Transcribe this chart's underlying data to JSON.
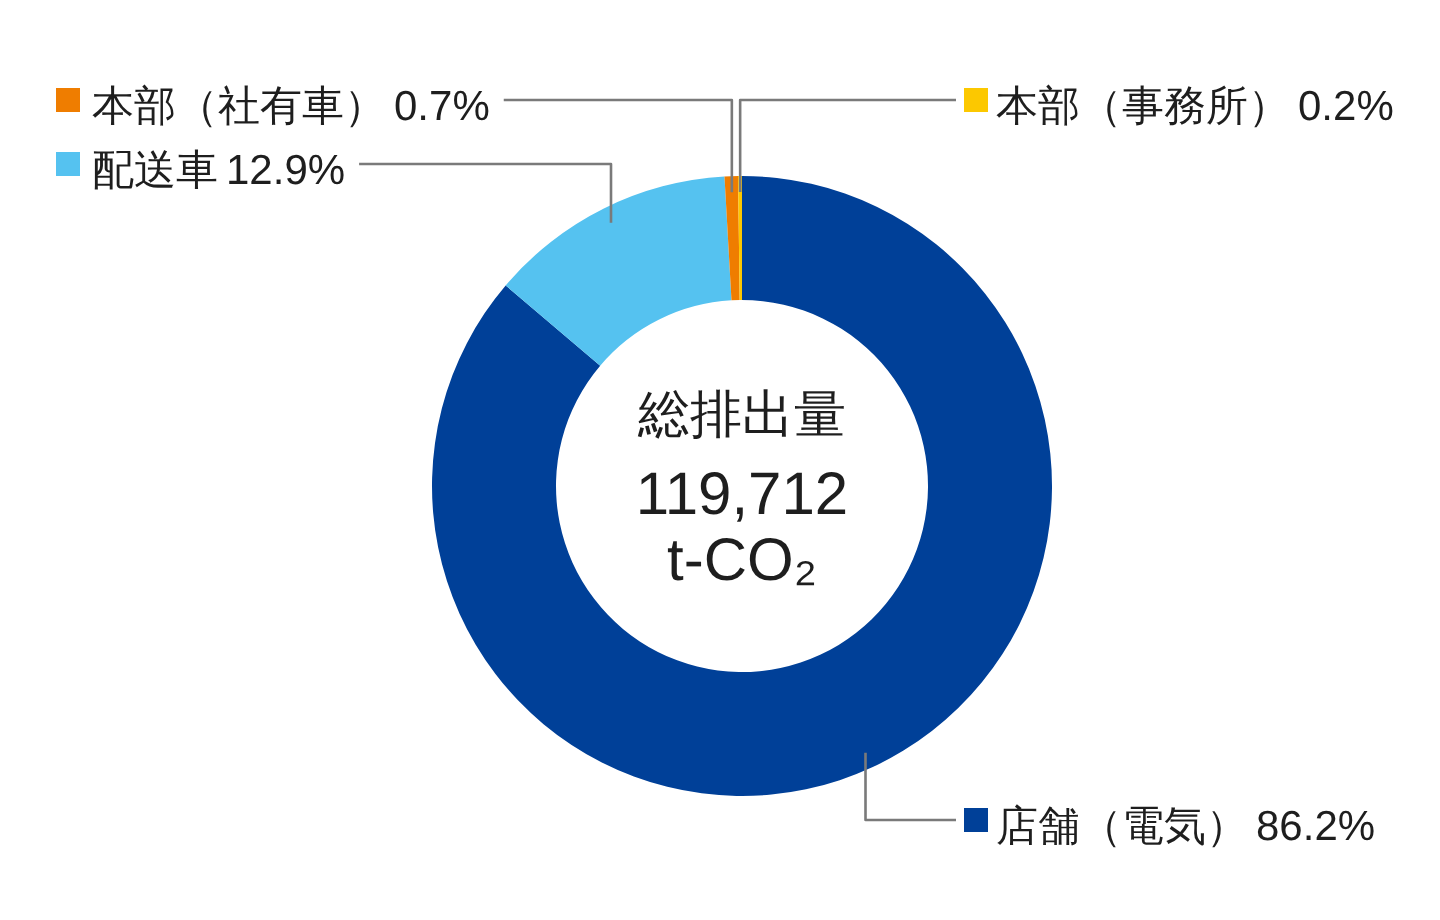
{
  "chart_data": {
    "type": "donut",
    "categories": [
      "店舗（電気）",
      "配送車",
      "本部（社有車）",
      "本部（事務所）"
    ],
    "values": [
      86.2,
      12.9,
      0.7,
      0.2
    ],
    "colors": [
      "#004098",
      "#55c2f0",
      "#ef7d00",
      "#fcc800"
    ],
    "value_labels": [
      "86.2%",
      "12.9%",
      "0.7%",
      "0.2%"
    ],
    "legend": "top",
    "annotations": [
      "総排出量",
      "119,712",
      "t-CO₂"
    ]
  }
}
